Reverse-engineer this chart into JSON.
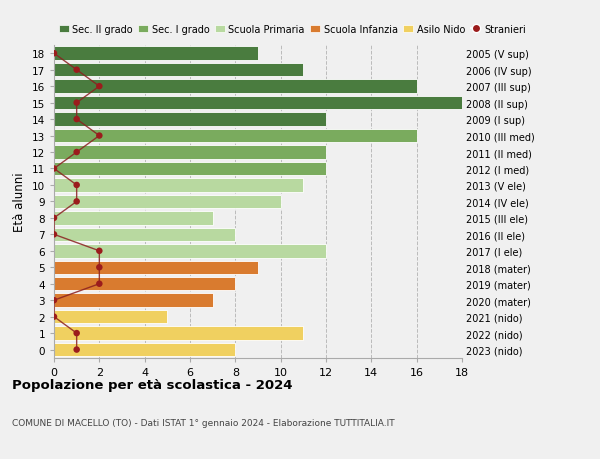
{
  "ages": [
    18,
    17,
    16,
    15,
    14,
    13,
    12,
    11,
    10,
    9,
    8,
    7,
    6,
    5,
    4,
    3,
    2,
    1,
    0
  ],
  "right_labels": [
    "2005 (V sup)",
    "2006 (IV sup)",
    "2007 (III sup)",
    "2008 (II sup)",
    "2009 (I sup)",
    "2010 (III med)",
    "2011 (II med)",
    "2012 (I med)",
    "2013 (V ele)",
    "2014 (IV ele)",
    "2015 (III ele)",
    "2016 (II ele)",
    "2017 (I ele)",
    "2018 (mater)",
    "2019 (mater)",
    "2020 (mater)",
    "2021 (nido)",
    "2022 (nido)",
    "2023 (nido)"
  ],
  "bar_values": [
    9,
    11,
    16,
    18,
    12,
    16,
    12,
    12,
    11,
    10,
    7,
    8,
    12,
    9,
    8,
    7,
    5,
    11,
    8
  ],
  "bar_colors": [
    "#4a7c3f",
    "#4a7c3f",
    "#4a7c3f",
    "#4a7c3f",
    "#4a7c3f",
    "#7aab5e",
    "#7aab5e",
    "#7aab5e",
    "#b8d9a0",
    "#b8d9a0",
    "#b8d9a0",
    "#b8d9a0",
    "#b8d9a0",
    "#d97b2f",
    "#d97b2f",
    "#d97b2f",
    "#f0d060",
    "#f0d060",
    "#f0d060"
  ],
  "stranieri_values": [
    0,
    1,
    2,
    1,
    1,
    2,
    1,
    0,
    1,
    1,
    0,
    0,
    2,
    2,
    2,
    0,
    0,
    1,
    1
  ],
  "title": "Popolazione per età scolastica - 2024",
  "subtitle": "COMUNE DI MACELLO (TO) - Dati ISTAT 1° gennaio 2024 - Elaborazione TUTTITALIA.IT",
  "ylabel": "Età alunni",
  "xlim": [
    0,
    18
  ],
  "xticks": [
    0,
    2,
    4,
    6,
    8,
    10,
    12,
    14,
    16,
    18
  ],
  "legend_labels": [
    "Sec. II grado",
    "Sec. I grado",
    "Scuola Primaria",
    "Scuola Infanzia",
    "Asilo Nido",
    "Stranieri"
  ],
  "legend_colors": [
    "#4a7c3f",
    "#7aab5e",
    "#b8d9a0",
    "#d97b2f",
    "#f0d060",
    "#9b1c1c"
  ],
  "bg_color": "#f0f0f0",
  "stranieri_color": "#9b1c1c",
  "stranieri_line_color": "#8b2020"
}
